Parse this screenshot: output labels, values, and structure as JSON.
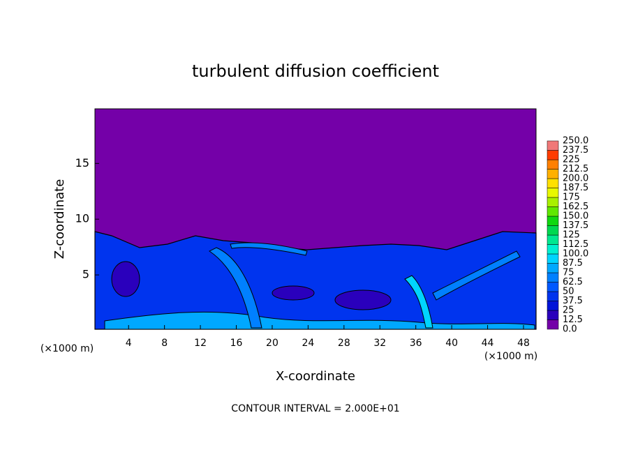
{
  "chart_data": {
    "type": "contour",
    "title": "turbulent diffusion coefficient",
    "xlabel": "X-coordinate",
    "ylabel": "Z-coordinate",
    "x_unit": "(×1000 m)",
    "y_unit": "(×1000 m)",
    "footer": "CONTOUR INTERVAL = 2.000E+01",
    "xlim": [
      0.25,
      49.4
    ],
    "ylim": [
      0.125,
      19.9
    ],
    "xticks": [
      4,
      8,
      12,
      16,
      20,
      24,
      28,
      32,
      36,
      40,
      44,
      48
    ],
    "yticks": [
      5,
      10,
      15
    ],
    "colorbar": {
      "levels": [
        {
          "value": 0,
          "label": "0.0"
        },
        12.5,
        25,
        37.5,
        50,
        62.5,
        75,
        87.5,
        {
          "value": 100,
          "label": "100.0"
        },
        112.5,
        125,
        137.5,
        {
          "value": 150,
          "label": "150.0"
        },
        162.5,
        175,
        187.5,
        {
          "value": 200,
          "label": "200.0"
        },
        212.5,
        225,
        237.5,
        {
          "value": 250,
          "label": "250.0"
        }
      ],
      "colors": [
        "#7400a8",
        "#2a00bc",
        "#0014d8",
        "#0034ee",
        "#0058ff",
        "#0080ff",
        "#00a8ff",
        "#00d4ff",
        "#00f0d0",
        "#00e890",
        "#00d850",
        "#10d810",
        "#60e800",
        "#a8f000",
        "#e8f800",
        "#ffe000",
        "#ffb000",
        "#ff8000",
        "#ff3c00",
        "#f07878"
      ]
    }
  }
}
